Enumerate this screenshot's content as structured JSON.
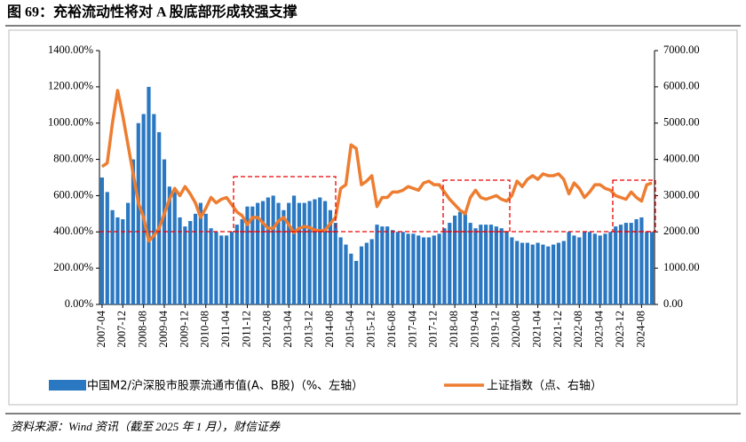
{
  "chart_data": {
    "type": "bar",
    "title": "图 69：充裕流动性将对 A 股底部形成较强支撑",
    "source": "资料来源：Wind 资讯（截至 2025 年 1 月），财信证券",
    "categories": [
      "2007-04",
      null,
      null,
      null,
      "2007-12",
      null,
      null,
      null,
      "2008-08",
      null,
      null,
      null,
      "2009-04",
      null,
      null,
      null,
      "2009-12",
      null,
      null,
      null,
      "2010-08",
      null,
      null,
      null,
      "2011-04",
      null,
      null,
      null,
      "2011-12",
      null,
      null,
      null,
      "2012-08",
      null,
      null,
      null,
      "2013-04",
      null,
      null,
      null,
      "2013-12",
      null,
      null,
      null,
      "2014-08",
      null,
      null,
      null,
      "2015-04",
      null,
      null,
      null,
      "2015-12",
      null,
      null,
      null,
      "2016-08",
      null,
      null,
      null,
      "2017-04",
      null,
      null,
      null,
      "2017-12",
      null,
      null,
      null,
      "2018-08",
      null,
      null,
      null,
      "2019-04",
      null,
      null,
      null,
      "2019-12",
      null,
      null,
      null,
      "2020-08",
      null,
      null,
      null,
      "2021-04",
      null,
      null,
      null,
      "2021-12",
      null,
      null,
      null,
      "2022-08",
      null,
      null,
      null,
      "2023-04",
      null,
      null,
      null,
      "2023-12",
      null,
      null,
      null,
      "2024-08",
      null,
      null
    ],
    "series": [
      {
        "name": "中国M2/沪深股市股票流通市值(A、B股)（%、左轴）",
        "type": "bar",
        "color": "#2a78c2",
        "values": [
          700,
          620,
          520,
          480,
          470,
          560,
          800,
          1000,
          1050,
          1200,
          1050,
          950,
          800,
          650,
          620,
          480,
          430,
          460,
          500,
          560,
          500,
          420,
          400,
          380,
          380,
          400,
          440,
          470,
          540,
          540,
          560,
          570,
          590,
          600,
          560,
          520,
          560,
          600,
          560,
          560,
          570,
          580,
          590,
          570,
          520,
          450,
          370,
          330,
          280,
          240,
          320,
          340,
          360,
          440,
          430,
          430,
          410,
          400,
          400,
          390,
          390,
          380,
          370,
          370,
          380,
          390,
          420,
          450,
          490,
          510,
          500,
          450,
          420,
          440,
          440,
          440,
          430,
          420,
          400,
          370,
          350,
          340,
          340,
          330,
          340,
          330,
          320,
          330,
          340,
          350,
          400,
          380,
          370,
          400,
          400,
          390,
          380,
          390,
          400,
          430,
          440,
          450,
          450,
          470,
          480,
          400,
          400
        ]
      },
      {
        "name": "上证指数（点、右轴）",
        "type": "line",
        "axis": "y2",
        "color": "#ed7d31",
        "values": [
          3800,
          3900,
          5000,
          5900,
          5200,
          4400,
          3600,
          2800,
          2400,
          1750,
          1900,
          2100,
          2500,
          2900,
          3200,
          3000,
          3250,
          3050,
          2800,
          2400,
          2650,
          2950,
          2800,
          2900,
          2950,
          2750,
          2550,
          2450,
          2200,
          2400,
          2400,
          2250,
          2100,
          2100,
          2300,
          2400,
          2200,
          1980,
          2100,
          2150,
          2120,
          2050,
          2030,
          2050,
          2230,
          2400,
          3200,
          3300,
          4400,
          4300,
          3300,
          3400,
          3550,
          2700,
          2950,
          2950,
          3100,
          3100,
          3150,
          3250,
          3200,
          3150,
          3350,
          3400,
          3300,
          3300,
          3100,
          2900,
          2750,
          2600,
          2500,
          2950,
          3150,
          2950,
          2900,
          2950,
          3000,
          2900,
          2850,
          3000,
          3400,
          3250,
          3450,
          3550,
          3450,
          3600,
          3550,
          3550,
          3600,
          3450,
          3050,
          3350,
          3200,
          2950,
          3100,
          3300,
          3300,
          3200,
          3150,
          3000,
          2950,
          2900,
          3100,
          2950,
          2850,
          3300,
          3350
        ]
      }
    ],
    "ylim": [
      0,
      1400
    ],
    "yticks": [
      {
        "value": 0,
        "label": "0.00%"
      },
      {
        "value": 200,
        "label": "200.00%"
      },
      {
        "value": 400,
        "label": "400.00%"
      },
      {
        "value": 600,
        "label": "600.00%"
      },
      {
        "value": 800,
        "label": "800.00%"
      },
      {
        "value": 1000,
        "label": "1000.00%"
      },
      {
        "value": 1200,
        "label": "1200.00%"
      },
      {
        "value": 1400,
        "label": "1400.00%"
      }
    ],
    "y2lim": [
      0,
      7000
    ],
    "y2ticks": [
      {
        "value": 0,
        "label": "0.00"
      },
      {
        "value": 1000,
        "label": "1000.00"
      },
      {
        "value": 2000,
        "label": "2000.00"
      },
      {
        "value": 3000,
        "label": "3000.00"
      },
      {
        "value": 4000,
        "label": "4000.00"
      },
      {
        "value": 5000,
        "label": "5000.00"
      },
      {
        "value": 6000,
        "label": "6000.00"
      },
      {
        "value": 7000,
        "label": "7000.00"
      }
    ],
    "grid": false
  }
}
